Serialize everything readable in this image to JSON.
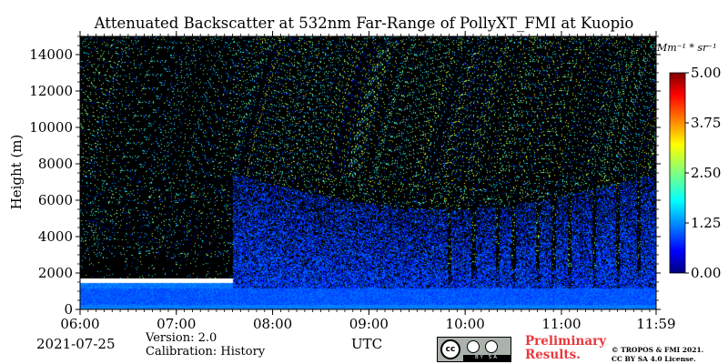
{
  "chart_data": {
    "type": "heatmap",
    "title": "Attenuated Backscatter at 532nm Far-Range of PollyXT_FMI at Kuopio",
    "ylabel": "Height (m)",
    "xlabel": "UTC",
    "x_ticks": [
      "06:00",
      "07:00",
      "08:00",
      "09:00",
      "10:00",
      "11:00",
      "11:59"
    ],
    "y_ticks": [
      0,
      2000,
      4000,
      6000,
      8000,
      10000,
      12000,
      14000
    ],
    "xlim": [
      "06:00",
      "11:59"
    ],
    "ylim": [
      0,
      15000
    ],
    "colorbar": {
      "unit": "Mm⁻¹ * sr⁻¹",
      "ticks": [
        "0.00",
        "1.25",
        "2.50",
        "3.75",
        "5.00"
      ],
      "range": [
        0,
        5
      ],
      "colormap": "jet"
    },
    "features": {
      "low_cloud_layer": {
        "height_m": 1600,
        "start": "06:00",
        "end": "07:35"
      },
      "aerosol_onset": "07:35",
      "aerosol_top_m": 7500,
      "precipitation_streak_times": [
        "09:50",
        "10:05",
        "10:20",
        "10:30",
        "10:45",
        "10:55",
        "11:05",
        "11:20",
        "11:35",
        "11:48"
      ]
    },
    "colors": {
      "background": "#000000",
      "low_signal": "#0a3cc8",
      "cloud": "#ffffff"
    }
  },
  "annotations": {
    "date": "2021-07-25",
    "version": "Version: 2.0",
    "calibration": "Calibration: History",
    "preliminary": "Preliminary Results.",
    "copyright_line1": "© TROPOS & FMI 2021.",
    "copyright_line2": "CC BY SA 4.0 License.",
    "license_badge": {
      "cc": "cc",
      "strip": "BY SA"
    }
  }
}
